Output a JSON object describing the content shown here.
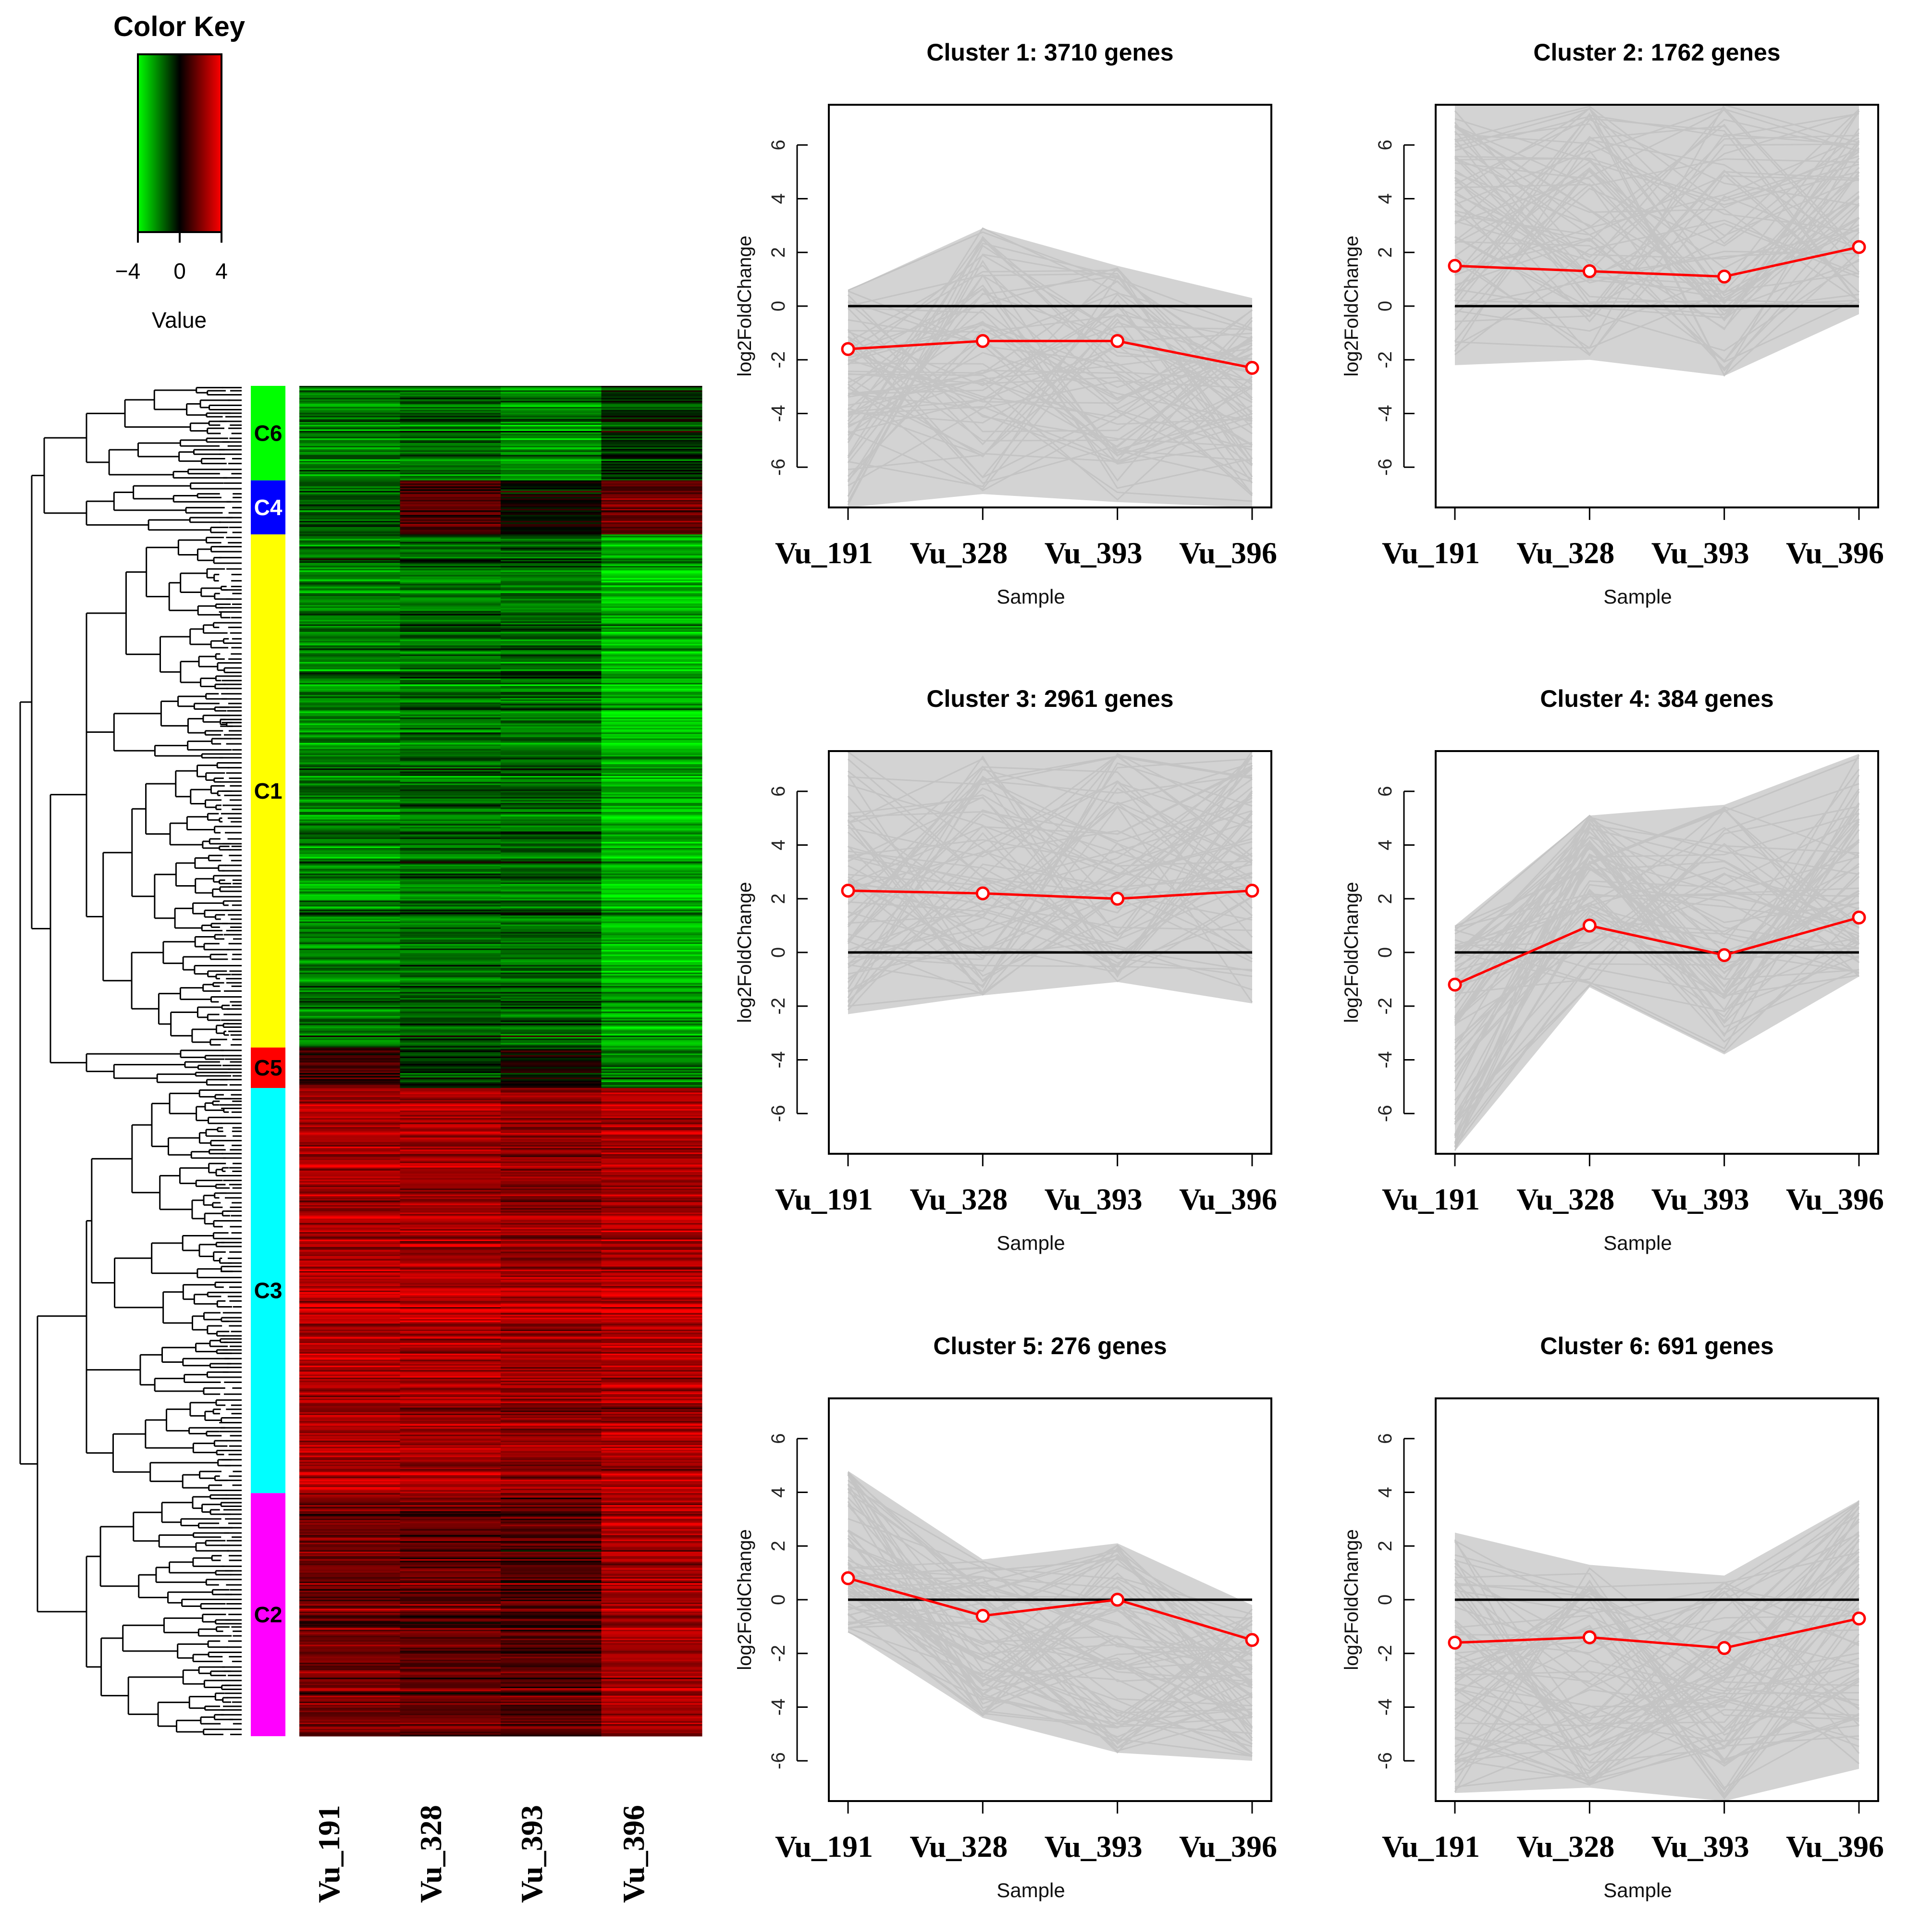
{
  "color_key": {
    "title": "Color Key",
    "ticks": [
      "−4",
      "0",
      "4"
    ],
    "tick_values": [
      -4,
      0,
      4
    ],
    "value_label": "Value",
    "low_color": "#00ff00",
    "mid_color": "#000000",
    "high_color": "#ff0000"
  },
  "heatmap": {
    "samples": [
      "Vu_191",
      "Vu_328",
      "Vu_393",
      "Vu_396"
    ],
    "clusters": [
      {
        "label": "C6",
        "color": "#00ff00",
        "text_color": "#000000",
        "weight": 7,
        "profile": [
          -1.6,
          -1.4,
          -1.8,
          -0.7
        ]
      },
      {
        "label": "C4",
        "color": "#0000ff",
        "text_color": "#ffffff",
        "weight": 4,
        "profile": [
          -1.2,
          1.0,
          -0.1,
          1.3
        ]
      },
      {
        "label": "C1",
        "color": "#ffff00",
        "text_color": "#000000",
        "weight": 38,
        "profile": [
          -1.6,
          -1.3,
          -1.3,
          -2.3
        ]
      },
      {
        "label": "C5",
        "color": "#ff0000",
        "text_color": "#000000",
        "weight": 3,
        "profile": [
          0.8,
          -0.6,
          0.0,
          -1.5
        ]
      },
      {
        "label": "C3",
        "color": "#00ffff",
        "text_color": "#000000",
        "weight": 30,
        "profile": [
          2.3,
          2.2,
          2.0,
          2.3
        ]
      },
      {
        "label": "C2",
        "color": "#ff00ff",
        "text_color": "#000000",
        "weight": 18,
        "profile": [
          1.5,
          1.3,
          1.1,
          2.2
        ]
      }
    ]
  },
  "chart_data": [
    {
      "type": "line",
      "title": "Cluster 1: 3710 genes",
      "categories": [
        "Vu_191",
        "Vu_328",
        "Vu_393",
        "Vu_396"
      ],
      "series": [
        {
          "name": "mean log2FoldChange",
          "values": [
            -1.6,
            -1.3,
            -1.3,
            -2.3
          ],
          "color": "#ff0000"
        }
      ],
      "xlabel": "Sample",
      "ylabel": "log2FoldChange",
      "yticks": [
        -6,
        -4,
        -2,
        0,
        2,
        4,
        6
      ],
      "ylim": [
        -7.5,
        7.5
      ],
      "reference_line": 0,
      "gene_band": {
        "lower": [
          -7.5,
          -7.0,
          -7.3,
          -7.5
        ],
        "upper": [
          0.6,
          2.9,
          1.5,
          0.3
        ]
      }
    },
    {
      "type": "line",
      "title": "Cluster 2: 1762 genes",
      "categories": [
        "Vu_191",
        "Vu_328",
        "Vu_393",
        "Vu_396"
      ],
      "series": [
        {
          "name": "mean log2FoldChange",
          "values": [
            1.5,
            1.3,
            1.1,
            2.2
          ],
          "color": "#ff0000"
        }
      ],
      "xlabel": "Sample",
      "ylabel": "log2FoldChange",
      "yticks": [
        -6,
        -4,
        -2,
        0,
        2,
        4,
        6
      ],
      "ylim": [
        -7.5,
        7.5
      ],
      "reference_line": 0,
      "gene_band": {
        "lower": [
          -2.2,
          -2.0,
          -2.6,
          -0.3
        ],
        "upper": [
          7.5,
          7.5,
          7.5,
          7.5
        ]
      }
    },
    {
      "type": "line",
      "title": "Cluster 3: 2961 genes",
      "categories": [
        "Vu_191",
        "Vu_328",
        "Vu_393",
        "Vu_396"
      ],
      "series": [
        {
          "name": "mean log2FoldChange",
          "values": [
            2.3,
            2.2,
            2.0,
            2.3
          ],
          "color": "#ff0000"
        }
      ],
      "xlabel": "Sample",
      "ylabel": "log2FoldChange",
      "yticks": [
        -6,
        -4,
        -2,
        0,
        2,
        4,
        6
      ],
      "ylim": [
        -7.5,
        7.5
      ],
      "reference_line": 0,
      "gene_band": {
        "lower": [
          -2.3,
          -1.6,
          -1.1,
          -1.9
        ],
        "upper": [
          7.5,
          7.5,
          7.5,
          7.5
        ]
      }
    },
    {
      "type": "line",
      "title": "Cluster 4: 384 genes",
      "categories": [
        "Vu_191",
        "Vu_328",
        "Vu_393",
        "Vu_396"
      ],
      "series": [
        {
          "name": "mean log2FoldChange",
          "values": [
            -1.2,
            1.0,
            -0.1,
            1.3
          ],
          "color": "#ff0000"
        }
      ],
      "xlabel": "Sample",
      "ylabel": "log2FoldChange",
      "yticks": [
        -6,
        -4,
        -2,
        0,
        2,
        4,
        6
      ],
      "ylim": [
        -7.5,
        7.5
      ],
      "reference_line": 0,
      "gene_band": {
        "lower": [
          -7.4,
          -1.3,
          -3.8,
          -0.9
        ],
        "upper": [
          1.0,
          5.1,
          5.5,
          7.4
        ]
      }
    },
    {
      "type": "line",
      "title": "Cluster 5: 276 genes",
      "categories": [
        "Vu_191",
        "Vu_328",
        "Vu_393",
        "Vu_396"
      ],
      "series": [
        {
          "name": "mean log2FoldChange",
          "values": [
            0.8,
            -0.6,
            0.0,
            -1.5
          ],
          "color": "#ff0000"
        }
      ],
      "xlabel": "Sample",
      "ylabel": "log2FoldChange",
      "yticks": [
        -6,
        -4,
        -2,
        0,
        2,
        4,
        6
      ],
      "ylim": [
        -7.5,
        7.5
      ],
      "reference_line": 0,
      "gene_band": {
        "lower": [
          -1.2,
          -4.4,
          -5.7,
          -6.0
        ],
        "upper": [
          4.8,
          1.5,
          2.1,
          -0.2
        ]
      }
    },
    {
      "type": "line",
      "title": "Cluster 6: 691 genes",
      "categories": [
        "Vu_191",
        "Vu_328",
        "Vu_393",
        "Vu_396"
      ],
      "series": [
        {
          "name": "mean log2FoldChange",
          "values": [
            -1.6,
            -1.4,
            -1.8,
            -0.7
          ],
          "color": "#ff0000"
        }
      ],
      "xlabel": "Sample",
      "ylabel": "log2FoldChange",
      "yticks": [
        -6,
        -4,
        -2,
        0,
        2,
        4,
        6
      ],
      "ylim": [
        -7.5,
        7.5
      ],
      "reference_line": 0,
      "gene_band": {
        "lower": [
          -7.2,
          -7.0,
          -7.5,
          -6.3
        ],
        "upper": [
          2.5,
          1.3,
          0.9,
          3.7
        ]
      }
    }
  ]
}
